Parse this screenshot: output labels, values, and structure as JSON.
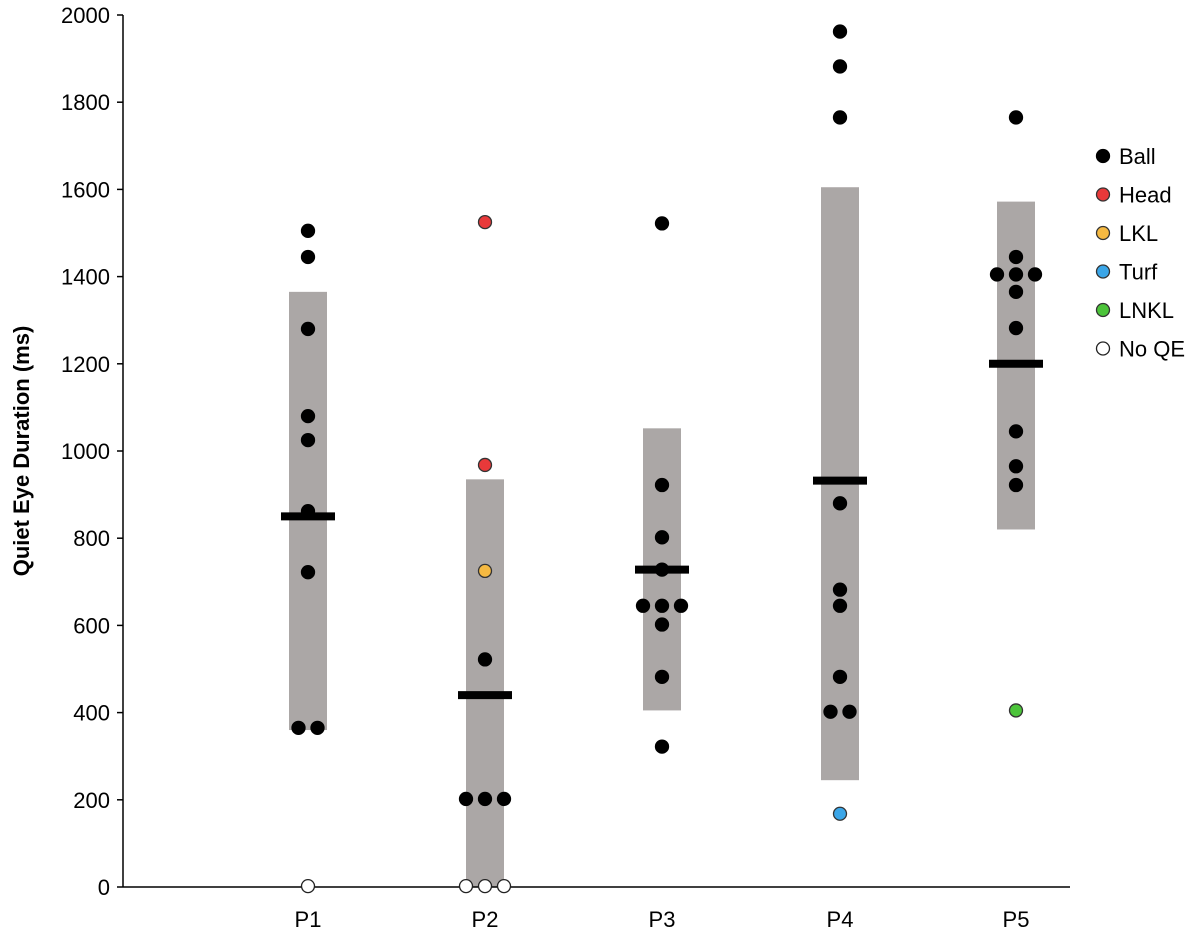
{
  "chart_data": {
    "type": "scatter",
    "title": "",
    "xlabel": "",
    "ylabel": "Quiet Eye Duration (ms)",
    "ylim": [
      0,
      2000
    ],
    "yticks": [
      0,
      200,
      400,
      600,
      800,
      1000,
      1200,
      1400,
      1600,
      1800,
      2000
    ],
    "categories": [
      "P1",
      "P2",
      "P3",
      "P4",
      "P5"
    ],
    "grid": false,
    "legend_position": "right",
    "summary": [
      {
        "category": "P1",
        "mean": 850,
        "sd_low": 360,
        "sd_high": 1365
      },
      {
        "category": "P2",
        "mean": 440,
        "sd_low": 0,
        "sd_high": 935
      },
      {
        "category": "P3",
        "mean": 728,
        "sd_low": 405,
        "sd_high": 1052
      },
      {
        "category": "P4",
        "mean": 932,
        "sd_low": 245,
        "sd_high": 1605
      },
      {
        "category": "P5",
        "mean": 1200,
        "sd_low": 820,
        "sd_high": 1572
      }
    ],
    "series": [
      {
        "name": "Ball",
        "color": "#000000",
        "points": [
          {
            "x": "P1",
            "y": 1505,
            "off": 0
          },
          {
            "x": "P1",
            "y": 1445,
            "off": 0
          },
          {
            "x": "P1",
            "y": 1280,
            "off": 0
          },
          {
            "x": "P1",
            "y": 1080,
            "off": 0
          },
          {
            "x": "P1",
            "y": 1025,
            "off": 0
          },
          {
            "x": "P1",
            "y": 862,
            "off": 0
          },
          {
            "x": "P1",
            "y": 722,
            "off": 0
          },
          {
            "x": "P1",
            "y": 365,
            "off": -0.5
          },
          {
            "x": "P1",
            "y": 365,
            "off": 0.5
          },
          {
            "x": "P2",
            "y": 522,
            "off": 0
          },
          {
            "x": "P2",
            "y": 202,
            "off": -1
          },
          {
            "x": "P2",
            "y": 202,
            "off": 0
          },
          {
            "x": "P2",
            "y": 202,
            "off": 1
          },
          {
            "x": "P3",
            "y": 1522,
            "off": 0
          },
          {
            "x": "P3",
            "y": 922,
            "off": 0
          },
          {
            "x": "P3",
            "y": 802,
            "off": 0
          },
          {
            "x": "P3",
            "y": 728,
            "off": 0
          },
          {
            "x": "P3",
            "y": 645,
            "off": -1
          },
          {
            "x": "P3",
            "y": 645,
            "off": 0
          },
          {
            "x": "P3",
            "y": 645,
            "off": 1
          },
          {
            "x": "P3",
            "y": 602,
            "off": 0
          },
          {
            "x": "P3",
            "y": 482,
            "off": 0
          },
          {
            "x": "P3",
            "y": 322,
            "off": 0
          },
          {
            "x": "P4",
            "y": 1962,
            "off": 0
          },
          {
            "x": "P4",
            "y": 1882,
            "off": 0
          },
          {
            "x": "P4",
            "y": 1765,
            "off": 0
          },
          {
            "x": "P4",
            "y": 880,
            "off": 0
          },
          {
            "x": "P4",
            "y": 682,
            "off": 0
          },
          {
            "x": "P4",
            "y": 645,
            "off": 0
          },
          {
            "x": "P4",
            "y": 482,
            "off": 0
          },
          {
            "x": "P4",
            "y": 402,
            "off": -0.5
          },
          {
            "x": "P4",
            "y": 402,
            "off": 0.5
          },
          {
            "x": "P5",
            "y": 1765,
            "off": 0
          },
          {
            "x": "P5",
            "y": 1445,
            "off": 0
          },
          {
            "x": "P5",
            "y": 1405,
            "off": -1
          },
          {
            "x": "P5",
            "y": 1405,
            "off": 0
          },
          {
            "x": "P5",
            "y": 1405,
            "off": 1
          },
          {
            "x": "P5",
            "y": 1365,
            "off": 0
          },
          {
            "x": "P5",
            "y": 1282,
            "off": 0
          },
          {
            "x": "P5",
            "y": 1045,
            "off": 0
          },
          {
            "x": "P5",
            "y": 965,
            "off": 0
          },
          {
            "x": "P5",
            "y": 922,
            "off": 0
          }
        ]
      },
      {
        "name": "Head",
        "color": "#e8393a",
        "points": [
          {
            "x": "P2",
            "y": 1525,
            "off": 0
          },
          {
            "x": "P2",
            "y": 968,
            "off": 0
          }
        ]
      },
      {
        "name": "LKL",
        "color": "#f5b942",
        "points": [
          {
            "x": "P2",
            "y": 725,
            "off": 0
          }
        ]
      },
      {
        "name": "Turf",
        "color": "#3ba6e8",
        "points": [
          {
            "x": "P4",
            "y": 168,
            "off": 0
          }
        ]
      },
      {
        "name": "LNKL",
        "color": "#4cc43a",
        "points": [
          {
            "x": "P5",
            "y": 405,
            "off": 0
          }
        ]
      },
      {
        "name": "No QE",
        "color": "#ffffff",
        "points": [
          {
            "x": "P1",
            "y": 2,
            "off": 0
          },
          {
            "x": "P2",
            "y": 2,
            "off": -1
          },
          {
            "x": "P2",
            "y": 2,
            "off": 0
          },
          {
            "x": "P2",
            "y": 2,
            "off": 1
          }
        ]
      }
    ]
  }
}
